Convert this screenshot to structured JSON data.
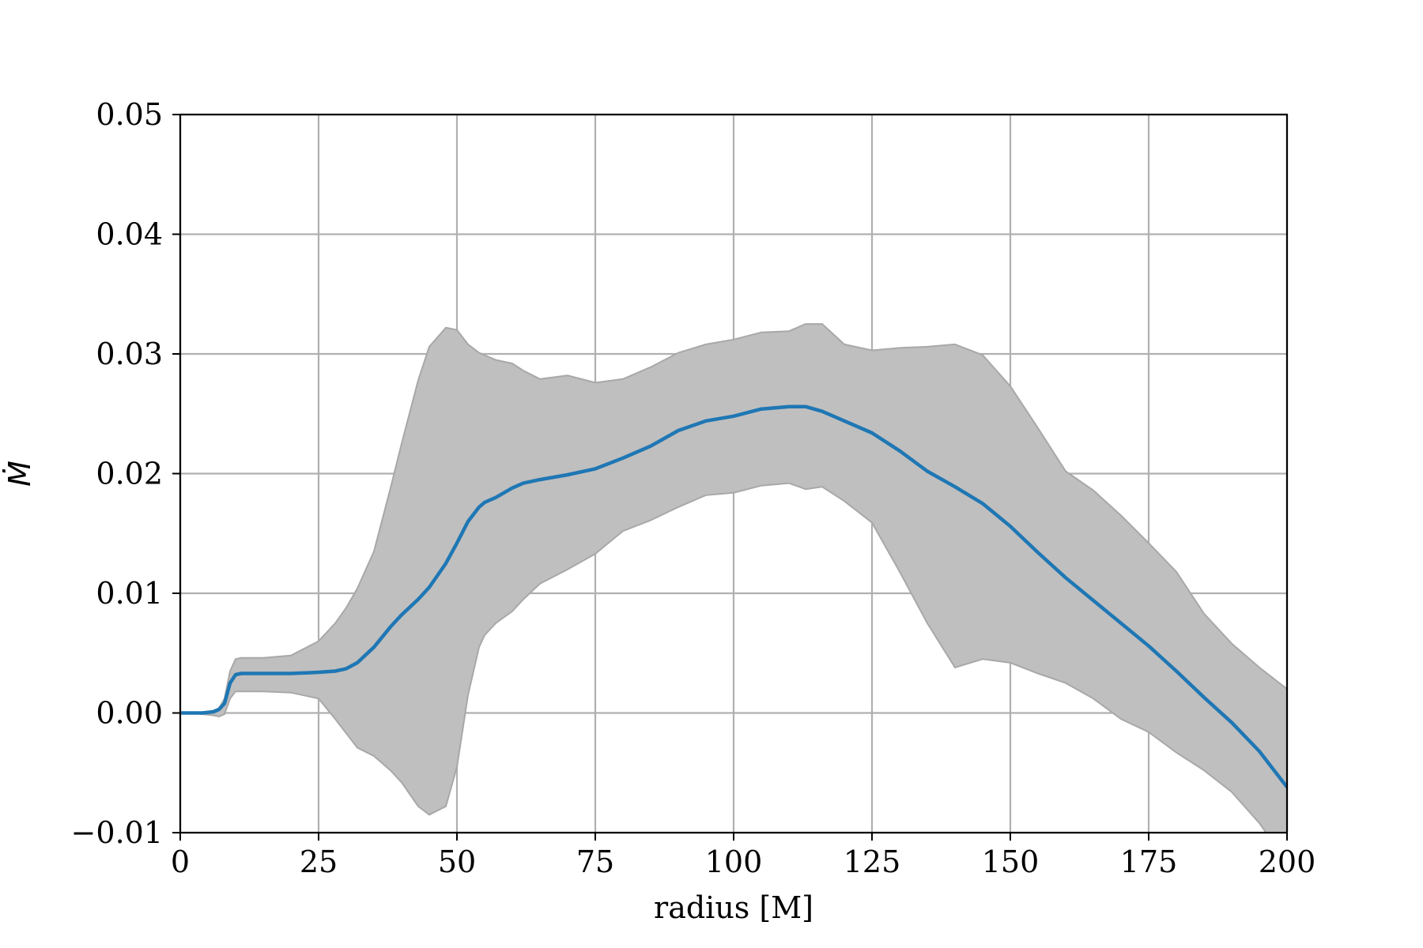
{
  "chart_data": {
    "type": "line",
    "title": "",
    "xlabel": "radius [M]",
    "ylabel": "Ṁ",
    "xlim": [
      0,
      200
    ],
    "ylim": [
      -0.01,
      0.05
    ],
    "xticks": [
      0,
      25,
      50,
      75,
      100,
      125,
      150,
      175,
      200
    ],
    "xtick_labels": [
      "0",
      "25",
      "50",
      "75",
      "100",
      "125",
      "150",
      "175",
      "200"
    ],
    "yticks": [
      -0.01,
      0.0,
      0.01,
      0.02,
      0.03,
      0.04,
      0.05
    ],
    "ytick_labels": [
      "−0.01",
      "0.00",
      "0.01",
      "0.02",
      "0.03",
      "0.04",
      "0.05"
    ],
    "grid": true,
    "line_color": "#1f77b4",
    "band_color": "#bfbfbf",
    "band_edge_color": "#a8a8a8",
    "series": [
      {
        "x": [
          0,
          2,
          4,
          6,
          7,
          8,
          9,
          10,
          11,
          15,
          20,
          25,
          28,
          30,
          32,
          35,
          38,
          40,
          43,
          45,
          48,
          50,
          52,
          54,
          55,
          57,
          60,
          62,
          65,
          70,
          75,
          80,
          85,
          90,
          95,
          100,
          105,
          110,
          113,
          116,
          120,
          125,
          130,
          135,
          140,
          145,
          150,
          155,
          160,
          165,
          170,
          175,
          180,
          185,
          190,
          195,
          200
        ],
        "y": [
          0.0,
          0.0,
          0.0,
          0.0001,
          0.0003,
          0.0008,
          0.0025,
          0.0032,
          0.0033,
          0.0033,
          0.0033,
          0.0034,
          0.0035,
          0.0037,
          0.0042,
          0.0055,
          0.0072,
          0.0082,
          0.0095,
          0.0105,
          0.0125,
          0.0142,
          0.016,
          0.0172,
          0.0176,
          0.018,
          0.0188,
          0.0192,
          0.0195,
          0.0199,
          0.0204,
          0.0213,
          0.0223,
          0.0236,
          0.0244,
          0.0248,
          0.0254,
          0.0256,
          0.0256,
          0.0252,
          0.0244,
          0.0234,
          0.0219,
          0.0202,
          0.0189,
          0.0175,
          0.0156,
          0.0134,
          0.0113,
          0.0094,
          0.0075,
          0.0056,
          0.0035,
          0.0013,
          -0.0008,
          -0.0032,
          -0.0062
        ],
        "upper": [
          0.0,
          0.0,
          0.0,
          0.0002,
          0.0004,
          0.0012,
          0.0035,
          0.0045,
          0.0046,
          0.0046,
          0.0048,
          0.006,
          0.0075,
          0.0088,
          0.0104,
          0.0135,
          0.0188,
          0.0225,
          0.0278,
          0.0306,
          0.0322,
          0.032,
          0.0308,
          0.0301,
          0.0299,
          0.0295,
          0.0292,
          0.0286,
          0.0279,
          0.0282,
          0.0276,
          0.0279,
          0.0289,
          0.0301,
          0.0308,
          0.0312,
          0.0318,
          0.0319,
          0.0325,
          0.0325,
          0.0308,
          0.0303,
          0.0305,
          0.0306,
          0.0308,
          0.0299,
          0.0273,
          0.0238,
          0.0202,
          0.0186,
          0.0165,
          0.0142,
          0.0118,
          0.0083,
          0.0058,
          0.0038,
          0.002
        ],
        "lower": [
          0.0,
          0.0,
          -0.0001,
          -0.0002,
          -0.0003,
          -0.0001,
          0.0012,
          0.0018,
          0.0018,
          0.0018,
          0.0017,
          0.0012,
          -0.0005,
          -0.0017,
          -0.0029,
          -0.0036,
          -0.0048,
          -0.0058,
          -0.0078,
          -0.0085,
          -0.0078,
          -0.0045,
          0.0015,
          0.0055,
          0.0065,
          0.0075,
          0.0085,
          0.0095,
          0.0108,
          0.012,
          0.0133,
          0.0152,
          0.0161,
          0.0172,
          0.0182,
          0.0184,
          0.019,
          0.0192,
          0.0187,
          0.0189,
          0.0177,
          0.0159,
          0.0118,
          0.0075,
          0.0038,
          0.0045,
          0.0042,
          0.0033,
          0.0025,
          0.0012,
          -0.0005,
          -0.0016,
          -0.0033,
          -0.0048,
          -0.0066,
          -0.0092,
          -0.0125
        ]
      }
    ]
  }
}
